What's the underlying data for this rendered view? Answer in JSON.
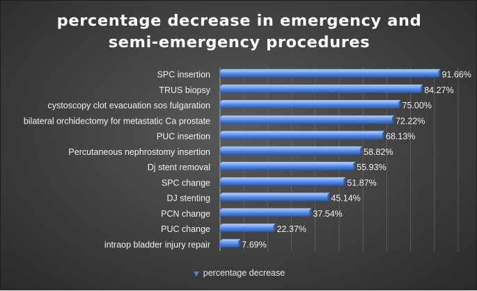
{
  "chart_data": {
    "type": "bar",
    "orientation": "horizontal",
    "title": [
      "percentage decrease in emergency and",
      "semi-emergency procedures"
    ],
    "categories": [
      "SPC insertion",
      "TRUS biopsy",
      "cystoscopy clot evacuation sos fulgaration",
      "bilateral orchidectomy for metastatic Ca prostate",
      "PUC insertion",
      "Percutaneous nephrostomy insertion",
      "Dj stent removal",
      "SPC change",
      "DJ stenting",
      "PCN change",
      "PUC change",
      "intraop bladder injury repair"
    ],
    "series": [
      {
        "name": "percentage decrease",
        "values": [
          91.66,
          84.27,
          75.0,
          72.22,
          68.13,
          58.82,
          55.93,
          51.87,
          45.14,
          37.54,
          22.37,
          7.69
        ],
        "labels": [
          "91.66%",
          "84.27%",
          "75.00%",
          "72.22%",
          "68.13%",
          "58.82%",
          "55.93%",
          "51.87%",
          "45.14%",
          "37.54%",
          "22.37%",
          "7.69%"
        ]
      }
    ],
    "xlim": [
      0,
      100
    ],
    "grid": true,
    "legend_position": "bottom",
    "colors": {
      "bar": "#4a86e8",
      "bar_dark": "#2f5fb0",
      "grid": "#707070",
      "text": "#f2f2f2"
    }
  }
}
